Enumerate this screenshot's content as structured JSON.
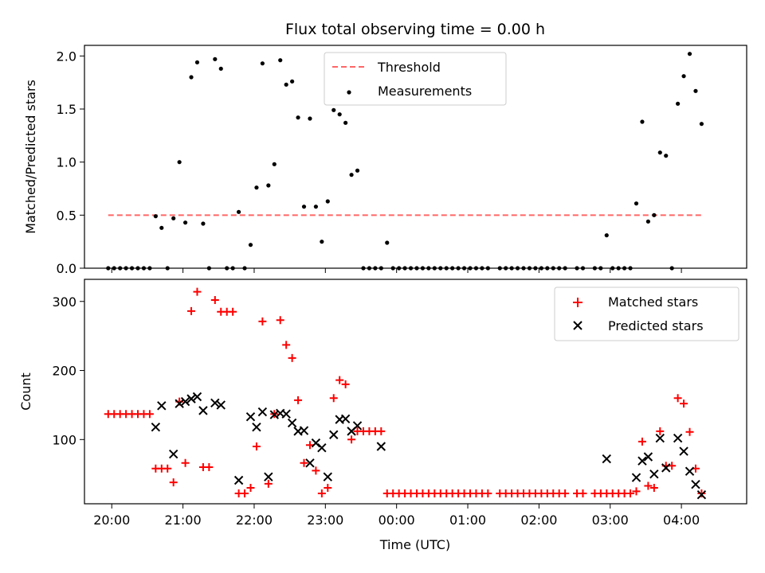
{
  "chart_data": [
    {
      "type": "scatter",
      "title": "Flux total observing time = 0.00 h",
      "ylabel": "Matched/Predicted stars",
      "xlabel": "",
      "xlim": [
        "19:37",
        "04:55"
      ],
      "ylim": [
        0,
        2.1
      ],
      "yticks": [
        "0.0",
        "0.5",
        "1.0",
        "1.5",
        "2.0"
      ],
      "grid": false,
      "legend_position": "top-center",
      "threshold": {
        "name": "Threshold",
        "value": 0.5,
        "x_range": [
          "19:57",
          "04:18"
        ],
        "color": "#ff6666"
      },
      "series": [
        {
          "name": "Measurements",
          "color": "#000000",
          "points": [
            [
              "19:57",
              0
            ],
            [
              "20:02",
              0
            ],
            [
              "20:07",
              0
            ],
            [
              "20:12",
              0
            ],
            [
              "20:17",
              0
            ],
            [
              "20:22",
              0
            ],
            [
              "20:27",
              0
            ],
            [
              "20:32",
              0
            ],
            [
              "20:37",
              0.49
            ],
            [
              "20:42",
              0.38
            ],
            [
              "20:47",
              0
            ],
            [
              "20:52",
              0.47
            ],
            [
              "20:57",
              1.0
            ],
            [
              "21:02",
              0.43
            ],
            [
              "21:07",
              1.8
            ],
            [
              "21:12",
              1.94
            ],
            [
              "21:17",
              0.42
            ],
            [
              "21:22",
              0
            ],
            [
              "21:27",
              1.97
            ],
            [
              "21:32",
              1.88
            ],
            [
              "21:37",
              0
            ],
            [
              "21:42",
              0
            ],
            [
              "21:47",
              0.53
            ],
            [
              "21:52",
              0
            ],
            [
              "21:57",
              0.22
            ],
            [
              "22:02",
              0.76
            ],
            [
              "22:07",
              1.93
            ],
            [
              "22:12",
              0.78
            ],
            [
              "22:17",
              0.98
            ],
            [
              "22:22",
              1.96
            ],
            [
              "22:27",
              1.73
            ],
            [
              "22:32",
              1.76
            ],
            [
              "22:37",
              1.42
            ],
            [
              "22:42",
              0.58
            ],
            [
              "22:47",
              1.41
            ],
            [
              "22:52",
              0.58
            ],
            [
              "22:57",
              0.25
            ],
            [
              "23:02",
              0.63
            ],
            [
              "23:07",
              1.49
            ],
            [
              "23:12",
              1.45
            ],
            [
              "23:17",
              1.37
            ],
            [
              "23:22",
              0.88
            ],
            [
              "23:27",
              0.92
            ],
            [
              "23:32",
              0
            ],
            [
              "23:37",
              0
            ],
            [
              "23:42",
              0
            ],
            [
              "23:47",
              0
            ],
            [
              "23:52",
              0.24
            ],
            [
              "23:57",
              0
            ],
            [
              "00:02",
              0
            ],
            [
              "00:07",
              0
            ],
            [
              "00:12",
              0
            ],
            [
              "00:17",
              0
            ],
            [
              "00:22",
              0
            ],
            [
              "00:27",
              0
            ],
            [
              "00:32",
              0
            ],
            [
              "00:37",
              0
            ],
            [
              "00:42",
              0
            ],
            [
              "00:47",
              0
            ],
            [
              "00:52",
              0
            ],
            [
              "00:57",
              0
            ],
            [
              "01:02",
              0
            ],
            [
              "01:07",
              0
            ],
            [
              "01:12",
              0
            ],
            [
              "01:17",
              0
            ],
            [
              "01:27",
              0
            ],
            [
              "01:32",
              0
            ],
            [
              "01:37",
              0
            ],
            [
              "01:42",
              0
            ],
            [
              "01:47",
              0
            ],
            [
              "01:52",
              0
            ],
            [
              "01:57",
              0
            ],
            [
              "02:02",
              0
            ],
            [
              "02:07",
              0
            ],
            [
              "02:12",
              0
            ],
            [
              "02:17",
              0
            ],
            [
              "02:22",
              0
            ],
            [
              "02:32",
              0
            ],
            [
              "02:37",
              0
            ],
            [
              "02:47",
              0
            ],
            [
              "02:52",
              0
            ],
            [
              "02:57",
              0.31
            ],
            [
              "03:02",
              0
            ],
            [
              "03:07",
              0
            ],
            [
              "03:12",
              0
            ],
            [
              "03:17",
              0
            ],
            [
              "03:22",
              0.61
            ],
            [
              "03:27",
              1.38
            ],
            [
              "03:32",
              0.44
            ],
            [
              "03:37",
              0.5
            ],
            [
              "03:42",
              1.09
            ],
            [
              "03:47",
              1.06
            ],
            [
              "03:52",
              0
            ],
            [
              "03:57",
              1.55
            ],
            [
              "04:02",
              1.81
            ],
            [
              "04:07",
              2.02
            ],
            [
              "04:12",
              1.67
            ],
            [
              "04:17",
              1.36
            ]
          ]
        }
      ]
    },
    {
      "type": "scatter",
      "title": "",
      "ylabel": "Count",
      "xlabel": "Time (UTC)",
      "xlim": [
        "19:37",
        "04:55"
      ],
      "ylim": [
        7,
        332
      ],
      "yticks": [
        "100",
        "200",
        "300"
      ],
      "xticks": [
        "20:00",
        "21:00",
        "22:00",
        "23:00",
        "00:00",
        "01:00",
        "02:00",
        "03:00",
        "04:00"
      ],
      "grid": false,
      "legend_position": "top-right",
      "series": [
        {
          "name": "Matched stars",
          "marker": "+",
          "color": "#ff0000",
          "points": [
            [
              "19:57",
              137
            ],
            [
              "20:02",
              137
            ],
            [
              "20:07",
              137
            ],
            [
              "20:12",
              137
            ],
            [
              "20:17",
              137
            ],
            [
              "20:22",
              137
            ],
            [
              "20:27",
              137
            ],
            [
              "20:32",
              137
            ],
            [
              "20:37",
              58
            ],
            [
              "20:42",
              58
            ],
            [
              "20:47",
              58
            ],
            [
              "20:52",
              38
            ],
            [
              "20:57",
              155
            ],
            [
              "21:02",
              66
            ],
            [
              "21:07",
              286
            ],
            [
              "21:12",
              314
            ],
            [
              "21:17",
              60
            ],
            [
              "21:22",
              60
            ],
            [
              "21:27",
              302
            ],
            [
              "21:32",
              285
            ],
            [
              "21:37",
              285
            ],
            [
              "21:42",
              285
            ],
            [
              "21:47",
              22
            ],
            [
              "21:52",
              22
            ],
            [
              "21:57",
              30
            ],
            [
              "22:02",
              90
            ],
            [
              "22:07",
              271
            ],
            [
              "22:12",
              36
            ],
            [
              "22:17",
              137
            ],
            [
              "22:22",
              273
            ],
            [
              "22:27",
              237
            ],
            [
              "22:32",
              218
            ],
            [
              "22:37",
              157
            ],
            [
              "22:42",
              66
            ],
            [
              "22:47",
              92
            ],
            [
              "22:52",
              55
            ],
            [
              "22:57",
              22
            ],
            [
              "23:02",
              30
            ],
            [
              "23:07",
              160
            ],
            [
              "23:12",
              186
            ],
            [
              "23:17",
              180
            ],
            [
              "23:22",
              100
            ],
            [
              "23:27",
              112
            ],
            [
              "23:32",
              112
            ],
            [
              "23:37",
              112
            ],
            [
              "23:42",
              112
            ],
            [
              "23:47",
              112
            ],
            [
              "23:52",
              22
            ],
            [
              "23:57",
              22
            ],
            [
              "00:02",
              22
            ],
            [
              "00:07",
              22
            ],
            [
              "00:12",
              22
            ],
            [
              "00:17",
              22
            ],
            [
              "00:22",
              22
            ],
            [
              "00:27",
              22
            ],
            [
              "00:32",
              22
            ],
            [
              "00:37",
              22
            ],
            [
              "00:42",
              22
            ],
            [
              "00:47",
              22
            ],
            [
              "00:52",
              22
            ],
            [
              "00:57",
              22
            ],
            [
              "01:02",
              22
            ],
            [
              "01:07",
              22
            ],
            [
              "01:12",
              22
            ],
            [
              "01:17",
              22
            ],
            [
              "01:27",
              22
            ],
            [
              "01:32",
              22
            ],
            [
              "01:37",
              22
            ],
            [
              "01:42",
              22
            ],
            [
              "01:47",
              22
            ],
            [
              "01:52",
              22
            ],
            [
              "01:57",
              22
            ],
            [
              "02:02",
              22
            ],
            [
              "02:07",
              22
            ],
            [
              "02:12",
              22
            ],
            [
              "02:17",
              22
            ],
            [
              "02:22",
              22
            ],
            [
              "02:32",
              22
            ],
            [
              "02:37",
              22
            ],
            [
              "02:47",
              22
            ],
            [
              "02:52",
              22
            ],
            [
              "02:57",
              22
            ],
            [
              "03:02",
              22
            ],
            [
              "03:07",
              22
            ],
            [
              "03:12",
              22
            ],
            [
              "03:17",
              22
            ],
            [
              "03:22",
              25
            ],
            [
              "03:27",
              97
            ],
            [
              "03:32",
              33
            ],
            [
              "03:37",
              30
            ],
            [
              "03:42",
              112
            ],
            [
              "03:47",
              62
            ],
            [
              "03:52",
              62
            ],
            [
              "03:57",
              160
            ],
            [
              "04:02",
              152
            ],
            [
              "04:07",
              111
            ],
            [
              "04:12",
              58
            ],
            [
              "04:17",
              22
            ]
          ]
        },
        {
          "name": "Predicted stars",
          "marker": "x",
          "color": "#000000",
          "points": [
            [
              "20:37",
              118
            ],
            [
              "20:42",
              149
            ],
            [
              "20:52",
              79
            ],
            [
              "20:57",
              152
            ],
            [
              "21:02",
              155
            ],
            [
              "21:07",
              159
            ],
            [
              "21:12",
              162
            ],
            [
              "21:17",
              142
            ],
            [
              "21:27",
              153
            ],
            [
              "21:32",
              150
            ],
            [
              "21:47",
              41
            ],
            [
              "21:57",
              133
            ],
            [
              "22:02",
              118
            ],
            [
              "22:07",
              140
            ],
            [
              "22:12",
              46
            ],
            [
              "22:17",
              136
            ],
            [
              "22:22",
              138
            ],
            [
              "22:27",
              137
            ],
            [
              "22:32",
              124
            ],
            [
              "22:37",
              112
            ],
            [
              "22:42",
              113
            ],
            [
              "22:47",
              66
            ],
            [
              "22:52",
              95
            ],
            [
              "22:57",
              88
            ],
            [
              "23:02",
              46
            ],
            [
              "23:07",
              107
            ],
            [
              "23:12",
              129
            ],
            [
              "23:17",
              130
            ],
            [
              "23:22",
              112
            ],
            [
              "23:27",
              120
            ],
            [
              "23:47",
              90
            ],
            [
              "02:57",
              72
            ],
            [
              "03:22",
              45
            ],
            [
              "03:27",
              69
            ],
            [
              "03:32",
              75
            ],
            [
              "03:37",
              50
            ],
            [
              "03:42",
              102
            ],
            [
              "03:47",
              59
            ],
            [
              "03:57",
              102
            ],
            [
              "04:02",
              83
            ],
            [
              "04:07",
              54
            ],
            [
              "04:12",
              35
            ],
            [
              "04:17",
              20
            ]
          ]
        }
      ]
    }
  ]
}
